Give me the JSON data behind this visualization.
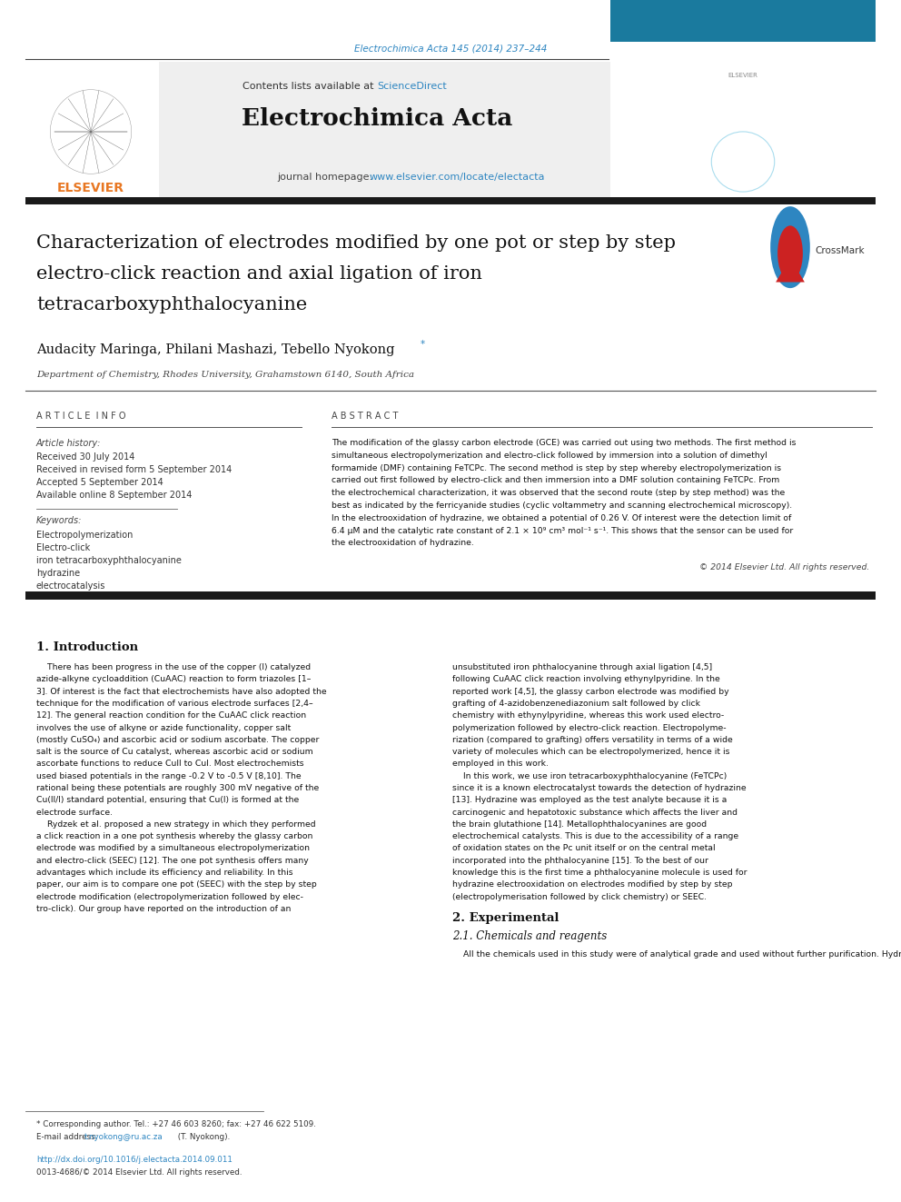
{
  "page_width": 9.92,
  "page_height": 13.23,
  "bg_color": "#ffffff",
  "journal_ref": "Electrochimica Acta 145 (2014) 237–244",
  "journal_ref_color": "#2e86c1",
  "journal_name": "Electrochimica Acta",
  "contents_text": "Contents lists available at ",
  "sciencedirect_text": "ScienceDirect",
  "sciencedirect_color": "#2e86c1",
  "journal_homepage_text": "journal homepage: ",
  "journal_url": "www.elsevier.com/locate/electacta",
  "journal_url_color": "#2e86c1",
  "header_bg": "#f0f0f0",
  "title_line1": "Characterization of electrodes modified by one pot or step by step",
  "title_line2": "electro-click reaction and axial ligation of iron",
  "title_line3": "tetracarboxyphthalocyanine",
  "authors": "Audacity Maringa, Philani Mashazi, Tebello Nyokong",
  "authors_star": "*",
  "affiliation": "Department of Chemistry, Rhodes University, Grahamstown 6140, South Africa",
  "article_info_header": "A R T I C L E  I N F O",
  "abstract_header": "A B S T R A C T",
  "article_history_label": "Article history:",
  "received": "Received 30 July 2014",
  "revised": "Received in revised form 5 September 2014",
  "accepted": "Accepted 5 September 2014",
  "available": "Available online 8 September 2014",
  "keywords_label": "Keywords:",
  "keyword1": "Electropolymerization",
  "keyword2": "Electro-click",
  "keyword3": "iron tetracarboxyphthalocyanine",
  "keyword4": "hydrazine",
  "keyword5": "electrocatalysis",
  "copyright": "© 2014 Elsevier Ltd. All rights reserved.",
  "section1_title": "1. Introduction",
  "section2_title": "2. Experimental",
  "section21_title": "2.1. Chemicals and reagents",
  "section21_text": "All the chemicals used in this study were of analytical grade and used without further purification. Hydrazine sulphate,",
  "footer_doi": "http://dx.doi.org/10.1016/j.electacta.2014.09.011",
  "footer_issn": "0013-4686/© 2014 Elsevier Ltd. All rights reserved.",
  "footnote_star": "* Corresponding author. Tel.: +27 46 603 8260; fax: +27 46 622 5109.",
  "footnote_email_label": "E-mail address: ",
  "footnote_email": "t.nyokong@ru.ac.za",
  "footnote_name": " (T. Nyokong).",
  "link_color": "#2e86c1",
  "text_color": "#000000"
}
